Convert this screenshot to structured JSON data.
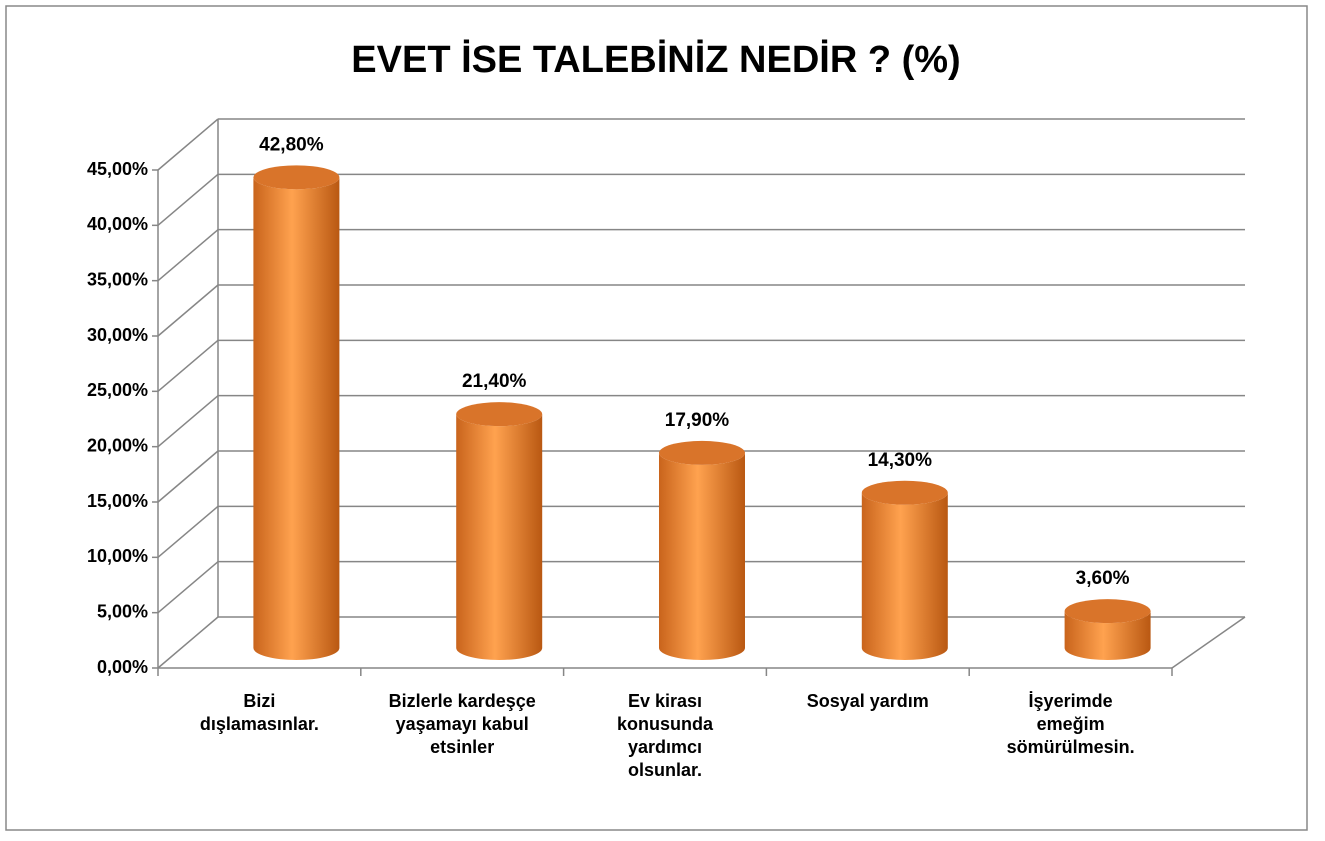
{
  "chart_data": {
    "type": "bar3d",
    "title": "EVET İSE TALEBİNİZ NEDİR ? (%)",
    "categories": [
      "Bizi dışlamasınlar.",
      "Bizlerle kardeşçe yaşamayı kabul etsinler",
      "Ev kirası konusunda yardımcı olsunlar.",
      "Sosyal yardım",
      "İşyerimde emeğim sömürülmesin."
    ],
    "values": [
      42.8,
      21.4,
      17.9,
      14.3,
      3.6
    ],
    "value_labels": [
      "42,80%",
      "21,40%",
      "17,90%",
      "14,30%",
      "3,60%"
    ],
    "color": "#f79646",
    "ylim": [
      0,
      45
    ],
    "yticks": [
      {
        "value": 0,
        "label": "0,00%"
      },
      {
        "value": 5,
        "label": "5,00%"
      },
      {
        "value": 10,
        "label": "10,00%"
      },
      {
        "value": 15,
        "label": "15,00%"
      },
      {
        "value": 20,
        "label": "20,00%"
      },
      {
        "value": 25,
        "label": "25,00%"
      },
      {
        "value": 30,
        "label": "30,00%"
      },
      {
        "value": 35,
        "label": "35,00%"
      },
      {
        "value": 40,
        "label": "40,00%"
      },
      {
        "value": 45,
        "label": "45,00%"
      }
    ],
    "grid": true
  }
}
